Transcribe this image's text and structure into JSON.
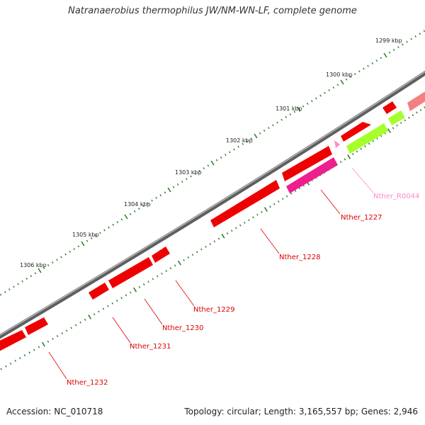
{
  "title": "Natranaerobius thermophilus JW/NM-WN-LF, complete genome",
  "accession_text": "Accession: NC_010718",
  "summary_text": "Topology: circular; Length: 3,165,557 bp; Genes: 2,946",
  "colors": {
    "backbone": "#7a7a7a",
    "tick": "#2e7d2e",
    "gene_cds": "#ee0000",
    "gene_pseudo": "#f28080",
    "gene_magenta": "#ee1e8e",
    "gene_lime": "#a6ff2a",
    "rna_label": "#ff88cc",
    "cds_label": "#dd0000"
  },
  "kbp_labels": [
    "1299 kbp",
    "1300 kbp",
    "1301 kbp",
    "1302 kbp",
    "1303 kbp",
    "1304 kbp",
    "1305 kbp",
    "1306 kbp"
  ],
  "gene_labels": [
    {
      "name": "Nther_R0044",
      "color": "rna_label"
    },
    {
      "name": "Nther_1227",
      "color": "cds_label"
    },
    {
      "name": "Nther_1228",
      "color": "cds_label"
    },
    {
      "name": "Nther_1229",
      "color": "cds_label"
    },
    {
      "name": "Nther_1230",
      "color": "cds_label"
    },
    {
      "name": "Nther_1231",
      "color": "cds_label"
    },
    {
      "name": "Nther_1232",
      "color": "cds_label"
    }
  ]
}
